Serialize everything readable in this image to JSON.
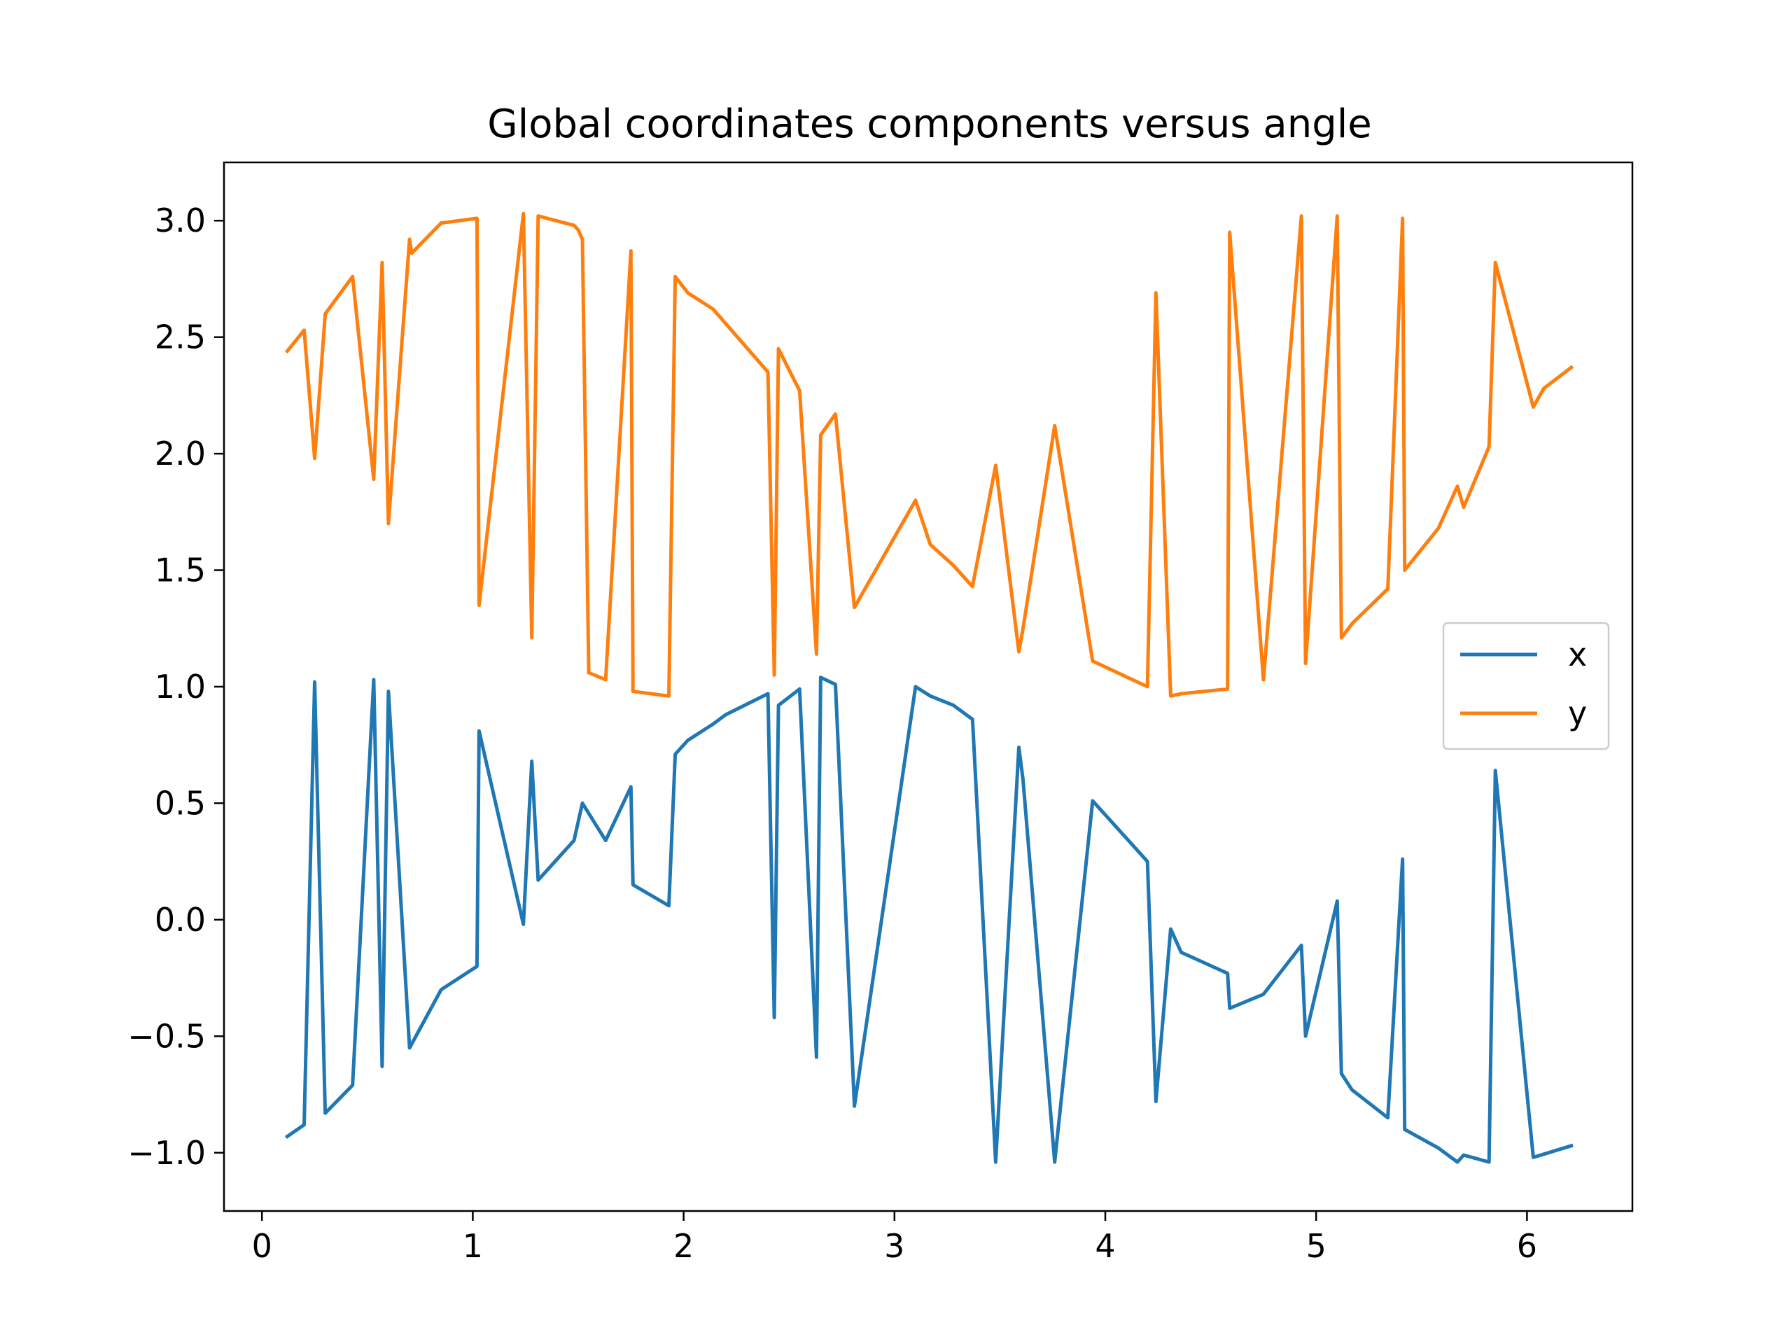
{
  "chart_data": {
    "type": "line",
    "title": "Global coordinates components versus angle",
    "xlabel": "",
    "ylabel": "",
    "xlim": [
      -0.18,
      6.5
    ],
    "ylim": [
      -1.25,
      3.25
    ],
    "x_ticks": [
      0,
      1,
      2,
      3,
      4,
      5,
      6
    ],
    "x_tick_labels": [
      "0",
      "1",
      "2",
      "3",
      "4",
      "5",
      "6"
    ],
    "y_ticks": [
      -1.0,
      -0.5,
      0.0,
      0.5,
      1.0,
      1.5,
      2.0,
      2.5,
      3.0
    ],
    "y_tick_labels": [
      "−1.0",
      "−0.5",
      "0.0",
      "0.5",
      "1.0",
      "1.5",
      "2.0",
      "2.5",
      "3.0"
    ],
    "grid": false,
    "legend_position": "center-right",
    "series": [
      {
        "name": "x",
        "color": "#1f77b4",
        "points": [
          [
            0.12,
            -0.93
          ],
          [
            0.2,
            -0.88
          ],
          [
            0.25,
            1.02
          ],
          [
            0.3,
            -0.83
          ],
          [
            0.43,
            -0.71
          ],
          [
            0.53,
            1.03
          ],
          [
            0.57,
            -0.63
          ],
          [
            0.6,
            0.98
          ],
          [
            0.7,
            -0.55
          ],
          [
            0.85,
            -0.3
          ],
          [
            1.02,
            -0.2
          ],
          [
            1.03,
            0.81
          ],
          [
            1.24,
            -0.02
          ],
          [
            1.28,
            0.68
          ],
          [
            1.31,
            0.17
          ],
          [
            1.48,
            0.34
          ],
          [
            1.5,
            0.42
          ],
          [
            1.52,
            0.5
          ],
          [
            1.63,
            0.34
          ],
          [
            1.75,
            0.57
          ],
          [
            1.76,
            0.15
          ],
          [
            1.93,
            0.06
          ],
          [
            1.96,
            0.71
          ],
          [
            2.02,
            0.77
          ],
          [
            2.14,
            0.84
          ],
          [
            2.2,
            0.88
          ],
          [
            2.4,
            0.97
          ],
          [
            2.43,
            -0.42
          ],
          [
            2.45,
            0.92
          ],
          [
            2.55,
            0.99
          ],
          [
            2.63,
            -0.59
          ],
          [
            2.65,
            1.04
          ],
          [
            2.72,
            1.01
          ],
          [
            2.81,
            -0.8
          ],
          [
            3.1,
            1.0
          ],
          [
            3.17,
            0.96
          ],
          [
            3.28,
            0.92
          ],
          [
            3.37,
            0.86
          ],
          [
            3.48,
            -1.04
          ],
          [
            3.59,
            0.74
          ],
          [
            3.61,
            0.6
          ],
          [
            3.76,
            -1.04
          ],
          [
            3.94,
            0.51
          ],
          [
            4.2,
            0.25
          ],
          [
            4.24,
            -0.78
          ],
          [
            4.31,
            -0.04
          ],
          [
            4.36,
            -0.14
          ],
          [
            4.58,
            -0.23
          ],
          [
            4.59,
            -0.38
          ],
          [
            4.75,
            -0.32
          ],
          [
            4.93,
            -0.11
          ],
          [
            4.95,
            -0.5
          ],
          [
            5.1,
            0.08
          ],
          [
            5.12,
            -0.66
          ],
          [
            5.17,
            -0.73
          ],
          [
            5.34,
            -0.85
          ],
          [
            5.41,
            0.26
          ],
          [
            5.42,
            -0.9
          ],
          [
            5.58,
            -0.98
          ],
          [
            5.67,
            -1.04
          ],
          [
            5.7,
            -1.01
          ],
          [
            5.82,
            -1.04
          ],
          [
            5.85,
            0.64
          ],
          [
            6.03,
            -1.02
          ],
          [
            6.21,
            -0.97
          ]
        ]
      },
      {
        "name": "y",
        "color": "#ff7f0e",
        "points": [
          [
            0.12,
            2.44
          ],
          [
            0.2,
            2.53
          ],
          [
            0.25,
            1.98
          ],
          [
            0.3,
            2.6
          ],
          [
            0.43,
            2.76
          ],
          [
            0.53,
            1.89
          ],
          [
            0.57,
            2.82
          ],
          [
            0.6,
            1.7
          ],
          [
            0.7,
            2.92
          ],
          [
            0.71,
            2.86
          ],
          [
            0.85,
            2.99
          ],
          [
            1.02,
            3.01
          ],
          [
            1.03,
            1.35
          ],
          [
            1.24,
            3.03
          ],
          [
            1.28,
            1.21
          ],
          [
            1.31,
            3.02
          ],
          [
            1.48,
            2.98
          ],
          [
            1.5,
            2.96
          ],
          [
            1.52,
            2.92
          ],
          [
            1.55,
            1.06
          ],
          [
            1.63,
            1.03
          ],
          [
            1.75,
            2.87
          ],
          [
            1.76,
            0.98
          ],
          [
            1.93,
            0.96
          ],
          [
            1.96,
            2.76
          ],
          [
            2.02,
            2.69
          ],
          [
            2.14,
            2.62
          ],
          [
            2.4,
            2.35
          ],
          [
            2.43,
            1.05
          ],
          [
            2.45,
            2.45
          ],
          [
            2.55,
            2.27
          ],
          [
            2.63,
            1.14
          ],
          [
            2.65,
            2.08
          ],
          [
            2.72,
            2.17
          ],
          [
            2.81,
            1.34
          ],
          [
            3.1,
            1.8
          ],
          [
            3.17,
            1.61
          ],
          [
            3.28,
            1.52
          ],
          [
            3.37,
            1.43
          ],
          [
            3.48,
            1.95
          ],
          [
            3.59,
            1.15
          ],
          [
            3.61,
            1.25
          ],
          [
            3.76,
            2.12
          ],
          [
            3.94,
            1.11
          ],
          [
            4.2,
            1.0
          ],
          [
            4.24,
            2.69
          ],
          [
            4.31,
            0.96
          ],
          [
            4.36,
            0.97
          ],
          [
            4.58,
            0.99
          ],
          [
            4.59,
            2.95
          ],
          [
            4.75,
            1.03
          ],
          [
            4.93,
            3.02
          ],
          [
            4.95,
            1.1
          ],
          [
            5.1,
            3.02
          ],
          [
            5.12,
            1.21
          ],
          [
            5.17,
            1.27
          ],
          [
            5.34,
            1.42
          ],
          [
            5.41,
            3.01
          ],
          [
            5.42,
            1.5
          ],
          [
            5.58,
            1.68
          ],
          [
            5.67,
            1.86
          ],
          [
            5.7,
            1.77
          ],
          [
            5.82,
            2.03
          ],
          [
            5.85,
            2.82
          ],
          [
            6.03,
            2.2
          ],
          [
            6.08,
            2.28
          ],
          [
            6.21,
            2.37
          ]
        ]
      }
    ]
  }
}
